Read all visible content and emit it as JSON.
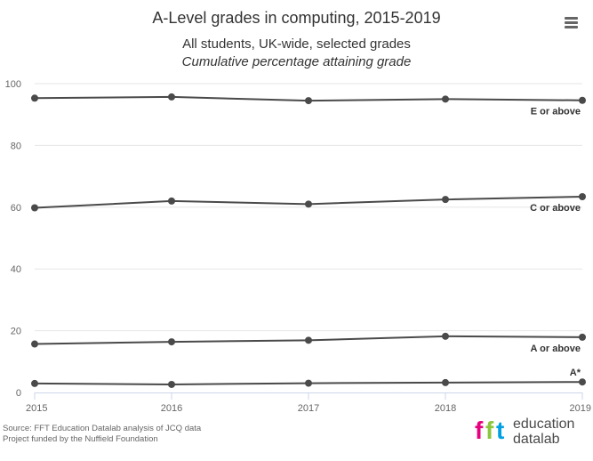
{
  "header": {
    "title": "A-Level grades in computing, 2015-2019",
    "subtitle": "All students, UK-wide, selected grades",
    "subtitle2": "Cumulative percentage attaining grade"
  },
  "menu": {
    "icon": "hamburger-menu-icon"
  },
  "credits": {
    "line1": "Source: FFT Education Datalab analysis of JCQ data",
    "line2": "Project funded by the Nuffield Foundation"
  },
  "logo": {
    "mark": "fft",
    "line1": "education",
    "line2": "datalab",
    "colors": [
      "#e6007e",
      "#8cc63f",
      "#00a0e3"
    ]
  },
  "chart_data": {
    "type": "line",
    "x": [
      2015,
      2016,
      2017,
      2018,
      2019
    ],
    "ylim": [
      0,
      100
    ],
    "yticks": [
      0,
      20,
      40,
      60,
      80,
      100
    ],
    "grid": true,
    "line_color": "#4a4a4a",
    "series": [
      {
        "name": "E or above",
        "values": [
          95.3,
          95.7,
          94.5,
          95.0,
          94.6
        ]
      },
      {
        "name": "C or above",
        "values": [
          59.8,
          62.0,
          61.0,
          62.5,
          63.4
        ]
      },
      {
        "name": "A or above",
        "values": [
          15.7,
          16.4,
          16.9,
          18.2,
          17.9
        ]
      },
      {
        "name": "A*",
        "values": [
          2.9,
          2.6,
          3.0,
          3.2,
          3.4
        ]
      }
    ]
  }
}
